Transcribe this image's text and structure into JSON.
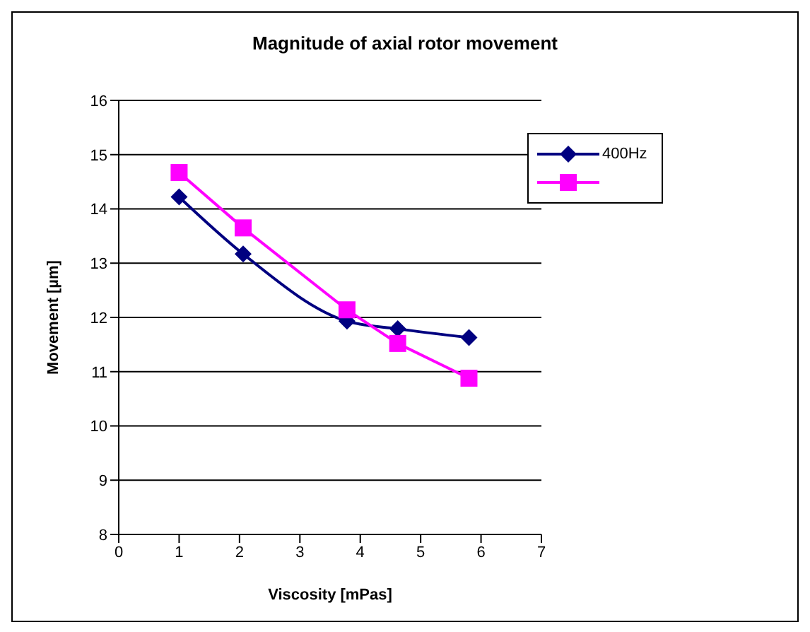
{
  "chart_data": {
    "type": "line",
    "title": "Magnitude of axial rotor movement",
    "xlabel": "Viscosity [mPas]",
    "ylabel": "Movement [µm]",
    "series": [
      {
        "name": "400Hz",
        "color": "#000080",
        "marker": "diamond",
        "x": [
          1.0,
          2.06,
          3.78,
          4.62,
          5.8
        ],
        "values": [
          14.22,
          13.17,
          11.93,
          11.79,
          11.63
        ]
      },
      {
        "color": "#ff00ff",
        "marker": "square",
        "x": [
          1.0,
          2.06,
          3.78,
          4.62,
          5.8
        ],
        "values": [
          14.67,
          13.65,
          12.14,
          11.52,
          10.88
        ]
      }
    ],
    "xlim": [
      0,
      7
    ],
    "xticks": [
      0,
      1,
      2,
      3,
      4,
      5,
      6,
      7
    ],
    "ylim": [
      8,
      16
    ],
    "yticks": [
      8,
      9,
      10,
      11,
      12,
      13,
      14,
      15,
      16
    ],
    "grid": "y",
    "legend": "top right"
  }
}
